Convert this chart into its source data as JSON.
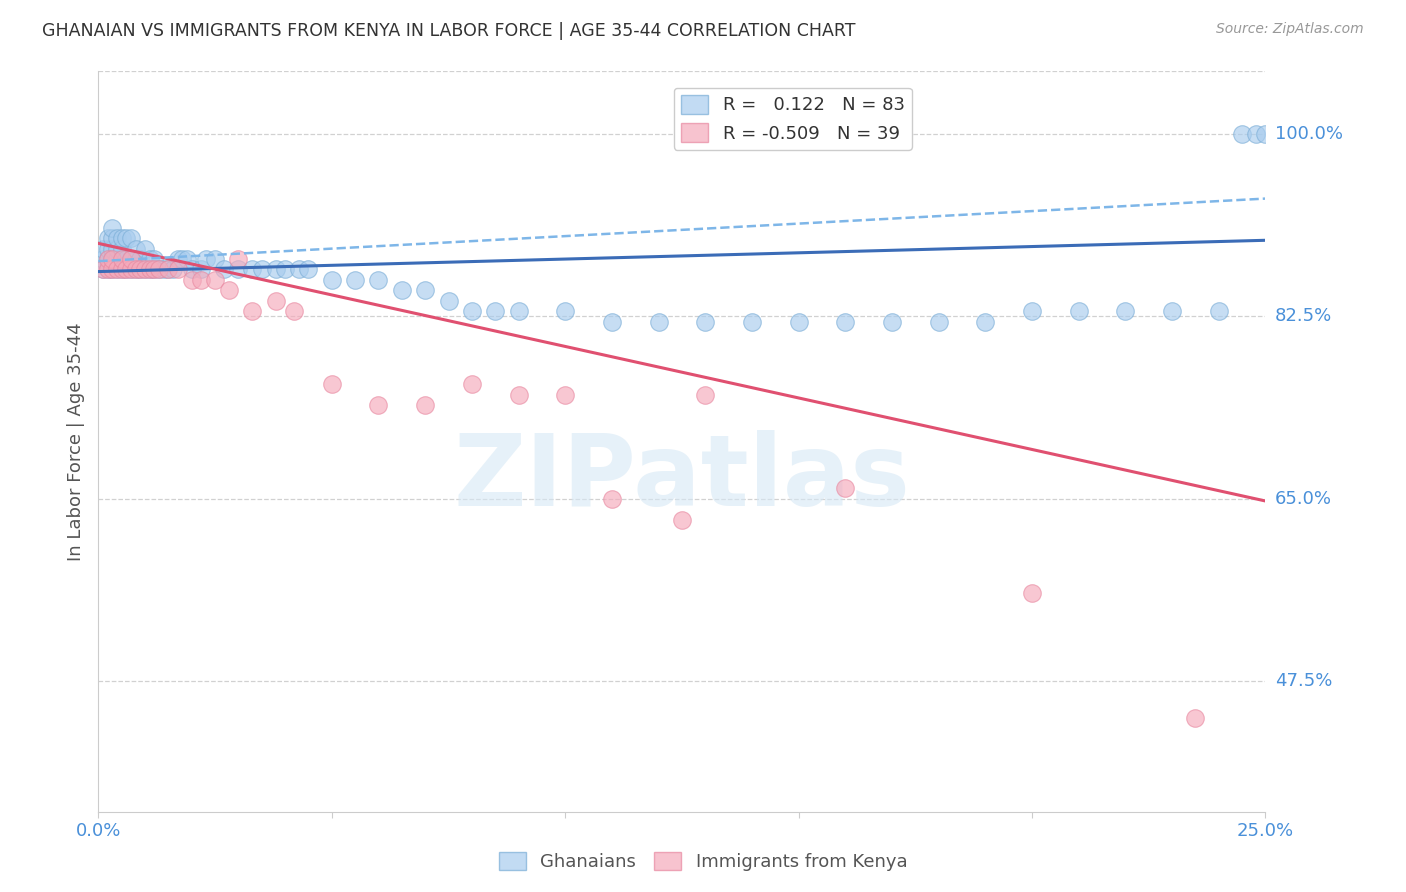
{
  "title": "GHANAIAN VS IMMIGRANTS FROM KENYA IN LABOR FORCE | AGE 35-44 CORRELATION CHART",
  "source": "Source: ZipAtlas.com",
  "ylabel": "In Labor Force | Age 35-44",
  "xlim": [
    0.0,
    0.25
  ],
  "ylim": [
    0.35,
    1.06
  ],
  "R_blue": 0.122,
  "N_blue": 83,
  "R_pink": -0.509,
  "N_pink": 39,
  "blue_color": "#A8CCEE",
  "blue_edge_color": "#7AADD6",
  "pink_color": "#F5AABB",
  "pink_edge_color": "#E888A0",
  "blue_line_color": "#3B6CB7",
  "pink_line_color": "#E05070",
  "dashed_line_color": "#7EB6E8",
  "grid_color": "#CCCCCC",
  "axis_label_color": "#4A90D9",
  "title_color": "#333333",
  "watermark_text": "ZIPatlas",
  "watermark_color": "#D6E8F5",
  "right_ticks": [
    [
      1.0,
      "100.0%"
    ],
    [
      0.825,
      "82.5%"
    ],
    [
      0.65,
      "65.0%"
    ],
    [
      0.475,
      "47.5%"
    ]
  ],
  "blue_line_y": [
    0.868,
    0.898
  ],
  "pink_line_y": [
    0.895,
    0.648
  ],
  "dashed_line_y": [
    0.878,
    0.938
  ],
  "blue_scatter_x": [
    0.001,
    0.001,
    0.001,
    0.002,
    0.002,
    0.002,
    0.002,
    0.003,
    0.003,
    0.003,
    0.003,
    0.003,
    0.004,
    0.004,
    0.004,
    0.004,
    0.005,
    0.005,
    0.005,
    0.005,
    0.006,
    0.006,
    0.006,
    0.007,
    0.007,
    0.007,
    0.008,
    0.008,
    0.008,
    0.009,
    0.009,
    0.01,
    0.01,
    0.011,
    0.011,
    0.012,
    0.012,
    0.013,
    0.014,
    0.015,
    0.016,
    0.017,
    0.018,
    0.019,
    0.02,
    0.022,
    0.023,
    0.025,
    0.027,
    0.03,
    0.033,
    0.035,
    0.038,
    0.04,
    0.043,
    0.045,
    0.05,
    0.055,
    0.06,
    0.065,
    0.07,
    0.075,
    0.08,
    0.085,
    0.09,
    0.1,
    0.11,
    0.12,
    0.13,
    0.14,
    0.15,
    0.16,
    0.17,
    0.18,
    0.19,
    0.2,
    0.21,
    0.22,
    0.23,
    0.24,
    0.245,
    0.248,
    0.25
  ],
  "blue_scatter_y": [
    0.87,
    0.88,
    0.89,
    0.87,
    0.88,
    0.89,
    0.9,
    0.87,
    0.88,
    0.89,
    0.9,
    0.91,
    0.87,
    0.88,
    0.89,
    0.9,
    0.87,
    0.88,
    0.89,
    0.9,
    0.87,
    0.88,
    0.9,
    0.87,
    0.88,
    0.9,
    0.87,
    0.88,
    0.89,
    0.87,
    0.88,
    0.87,
    0.89,
    0.87,
    0.88,
    0.87,
    0.88,
    0.87,
    0.87,
    0.87,
    0.87,
    0.88,
    0.88,
    0.88,
    0.87,
    0.87,
    0.88,
    0.88,
    0.87,
    0.87,
    0.87,
    0.87,
    0.87,
    0.87,
    0.87,
    0.87,
    0.86,
    0.86,
    0.86,
    0.85,
    0.85,
    0.84,
    0.83,
    0.83,
    0.83,
    0.83,
    0.82,
    0.82,
    0.82,
    0.82,
    0.82,
    0.82,
    0.82,
    0.82,
    0.82,
    0.83,
    0.83,
    0.83,
    0.83,
    0.83,
    1.0,
    1.0,
    1.0
  ],
  "pink_scatter_x": [
    0.001,
    0.002,
    0.002,
    0.003,
    0.003,
    0.004,
    0.005,
    0.005,
    0.006,
    0.007,
    0.007,
    0.008,
    0.009,
    0.01,
    0.011,
    0.012,
    0.013,
    0.015,
    0.017,
    0.02,
    0.022,
    0.025,
    0.028,
    0.03,
    0.033,
    0.038,
    0.042,
    0.05,
    0.06,
    0.07,
    0.08,
    0.09,
    0.1,
    0.11,
    0.125,
    0.13,
    0.16,
    0.2,
    0.235
  ],
  "pink_scatter_y": [
    0.87,
    0.87,
    0.88,
    0.87,
    0.88,
    0.87,
    0.87,
    0.88,
    0.87,
    0.87,
    0.88,
    0.87,
    0.87,
    0.87,
    0.87,
    0.87,
    0.87,
    0.87,
    0.87,
    0.86,
    0.86,
    0.86,
    0.85,
    0.88,
    0.83,
    0.84,
    0.83,
    0.76,
    0.74,
    0.74,
    0.76,
    0.75,
    0.75,
    0.65,
    0.63,
    0.75,
    0.66,
    0.56,
    0.44
  ]
}
